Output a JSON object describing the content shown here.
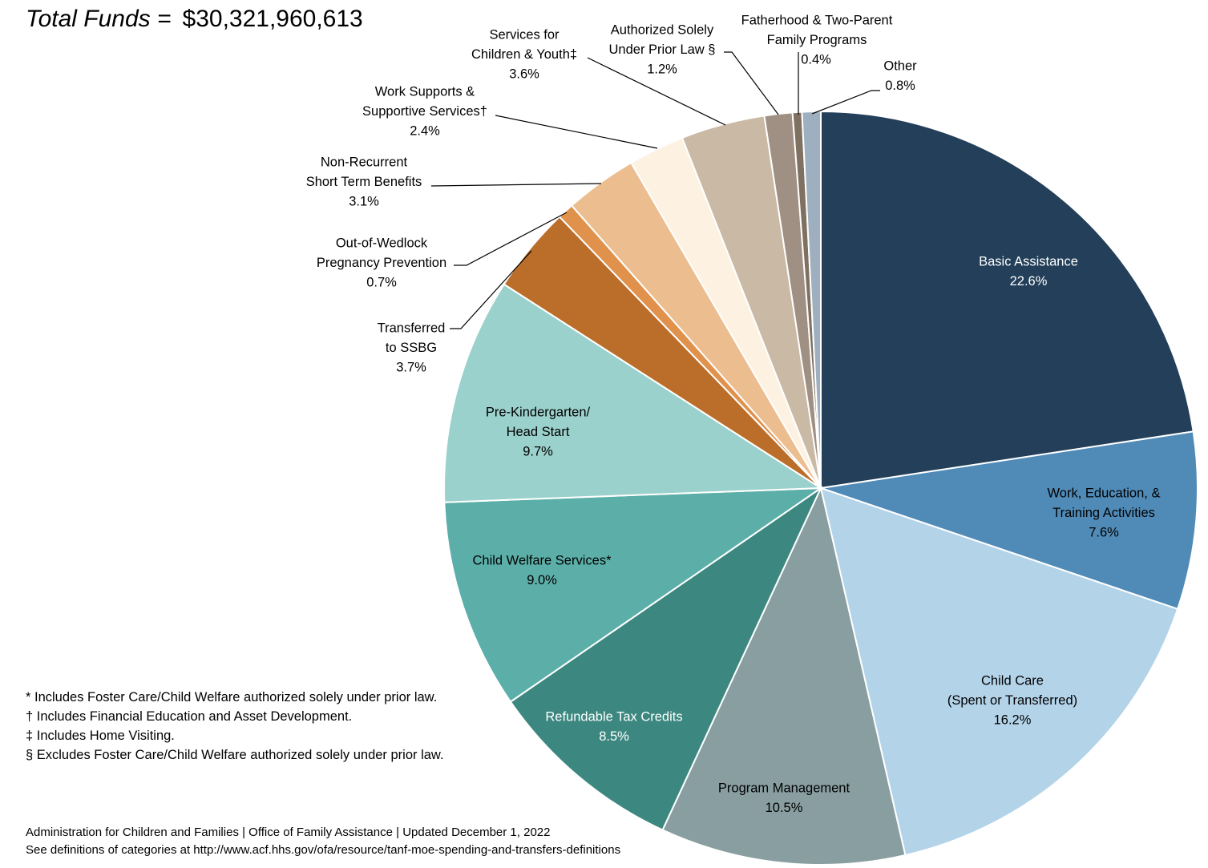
{
  "header": {
    "label": "Total Funds =",
    "value": "$30,321,960,613"
  },
  "chart_data": {
    "type": "pie",
    "title": "Total Funds = $30,321,960,613",
    "start_angle_deg": 0,
    "direction": "clockwise",
    "slices": [
      {
        "label": [
          "Basic Assistance"
        ],
        "pct_text": "22.6%",
        "value": 22.6,
        "color": "#233f59",
        "text_color": "#ffffff"
      },
      {
        "label": [
          "Work, Education, &",
          "Training Activities"
        ],
        "pct_text": "7.6%",
        "value": 7.6,
        "color": "#508bb8",
        "text_color": "#000000"
      },
      {
        "label": [
          "Child Care",
          "(Spent or Transferred)"
        ],
        "pct_text": "16.2%",
        "value": 16.2,
        "color": "#b3d3e9",
        "text_color": "#000000"
      },
      {
        "label": [
          "Program Management"
        ],
        "pct_text": "10.5%",
        "value": 10.5,
        "color": "#889ea0",
        "text_color": "#000000"
      },
      {
        "label": [
          "Refundable Tax Credits"
        ],
        "pct_text": "8.5%",
        "value": 8.5,
        "color": "#3c8880",
        "text_color": "#ffffff"
      },
      {
        "label": [
          "Child Welfare Services*"
        ],
        "pct_text": "9.0%",
        "value": 9.0,
        "color": "#5cafa9",
        "text_color": "#000000"
      },
      {
        "label": [
          "Pre-Kindergarten/",
          "Head Start"
        ],
        "pct_text": "9.7%",
        "value": 9.7,
        "color": "#9bd1cc",
        "text_color": "#000000"
      },
      {
        "label": [
          "Transferred",
          "to SSBG"
        ],
        "pct_text": "3.7%",
        "value": 3.7,
        "color": "#bb6d2a",
        "text_color": "#000000"
      },
      {
        "label": [
          "Out-of-Wedlock",
          "Pregnancy Prevention"
        ],
        "pct_text": "0.7%",
        "value": 0.7,
        "color": "#e0924c",
        "text_color": "#000000"
      },
      {
        "label": [
          "Non-Recurrent",
          "Short Term Benefits"
        ],
        "pct_text": "3.1%",
        "value": 3.1,
        "color": "#ecbd8f",
        "text_color": "#000000"
      },
      {
        "label": [
          "Work Supports &",
          "Supportive Services†"
        ],
        "pct_text": "2.4%",
        "value": 2.4,
        "color": "#fdf1e1",
        "text_color": "#000000"
      },
      {
        "label": [
          "Services for",
          "Children & Youth‡"
        ],
        "pct_text": "3.6%",
        "value": 3.6,
        "color": "#cab9a4",
        "text_color": "#000000"
      },
      {
        "label": [
          "Authorized Solely",
          "Under Prior Law §"
        ],
        "pct_text": "1.2%",
        "value": 1.2,
        "color": "#a09084",
        "text_color": "#000000"
      },
      {
        "label": [
          "Fatherhood & Two-Parent",
          "Family Programs"
        ],
        "pct_text": "0.4%",
        "value": 0.4,
        "color": "#7f7161",
        "text_color": "#000000"
      },
      {
        "label": [
          "Other"
        ],
        "pct_text": "0.8%",
        "value": 0.8,
        "color": "#9eb0c0",
        "text_color": "#000000"
      }
    ]
  },
  "footnotes": [
    "* Includes Foster Care/Child Welfare authorized solely under prior law.",
    "† Includes Financial Education and Asset Development.",
    "‡ Includes Home Visiting.",
    "§ Excludes Foster Care/Child Welfare authorized solely under prior law."
  ],
  "source": {
    "line1": "Administration for Children and Families | Office of Family Assistance | Updated December 1, 2022",
    "line2": "See definitions of categories at http://www.acf.hhs.gov/ofa/resource/tanf-moe-spending-and-transfers-definitions"
  }
}
